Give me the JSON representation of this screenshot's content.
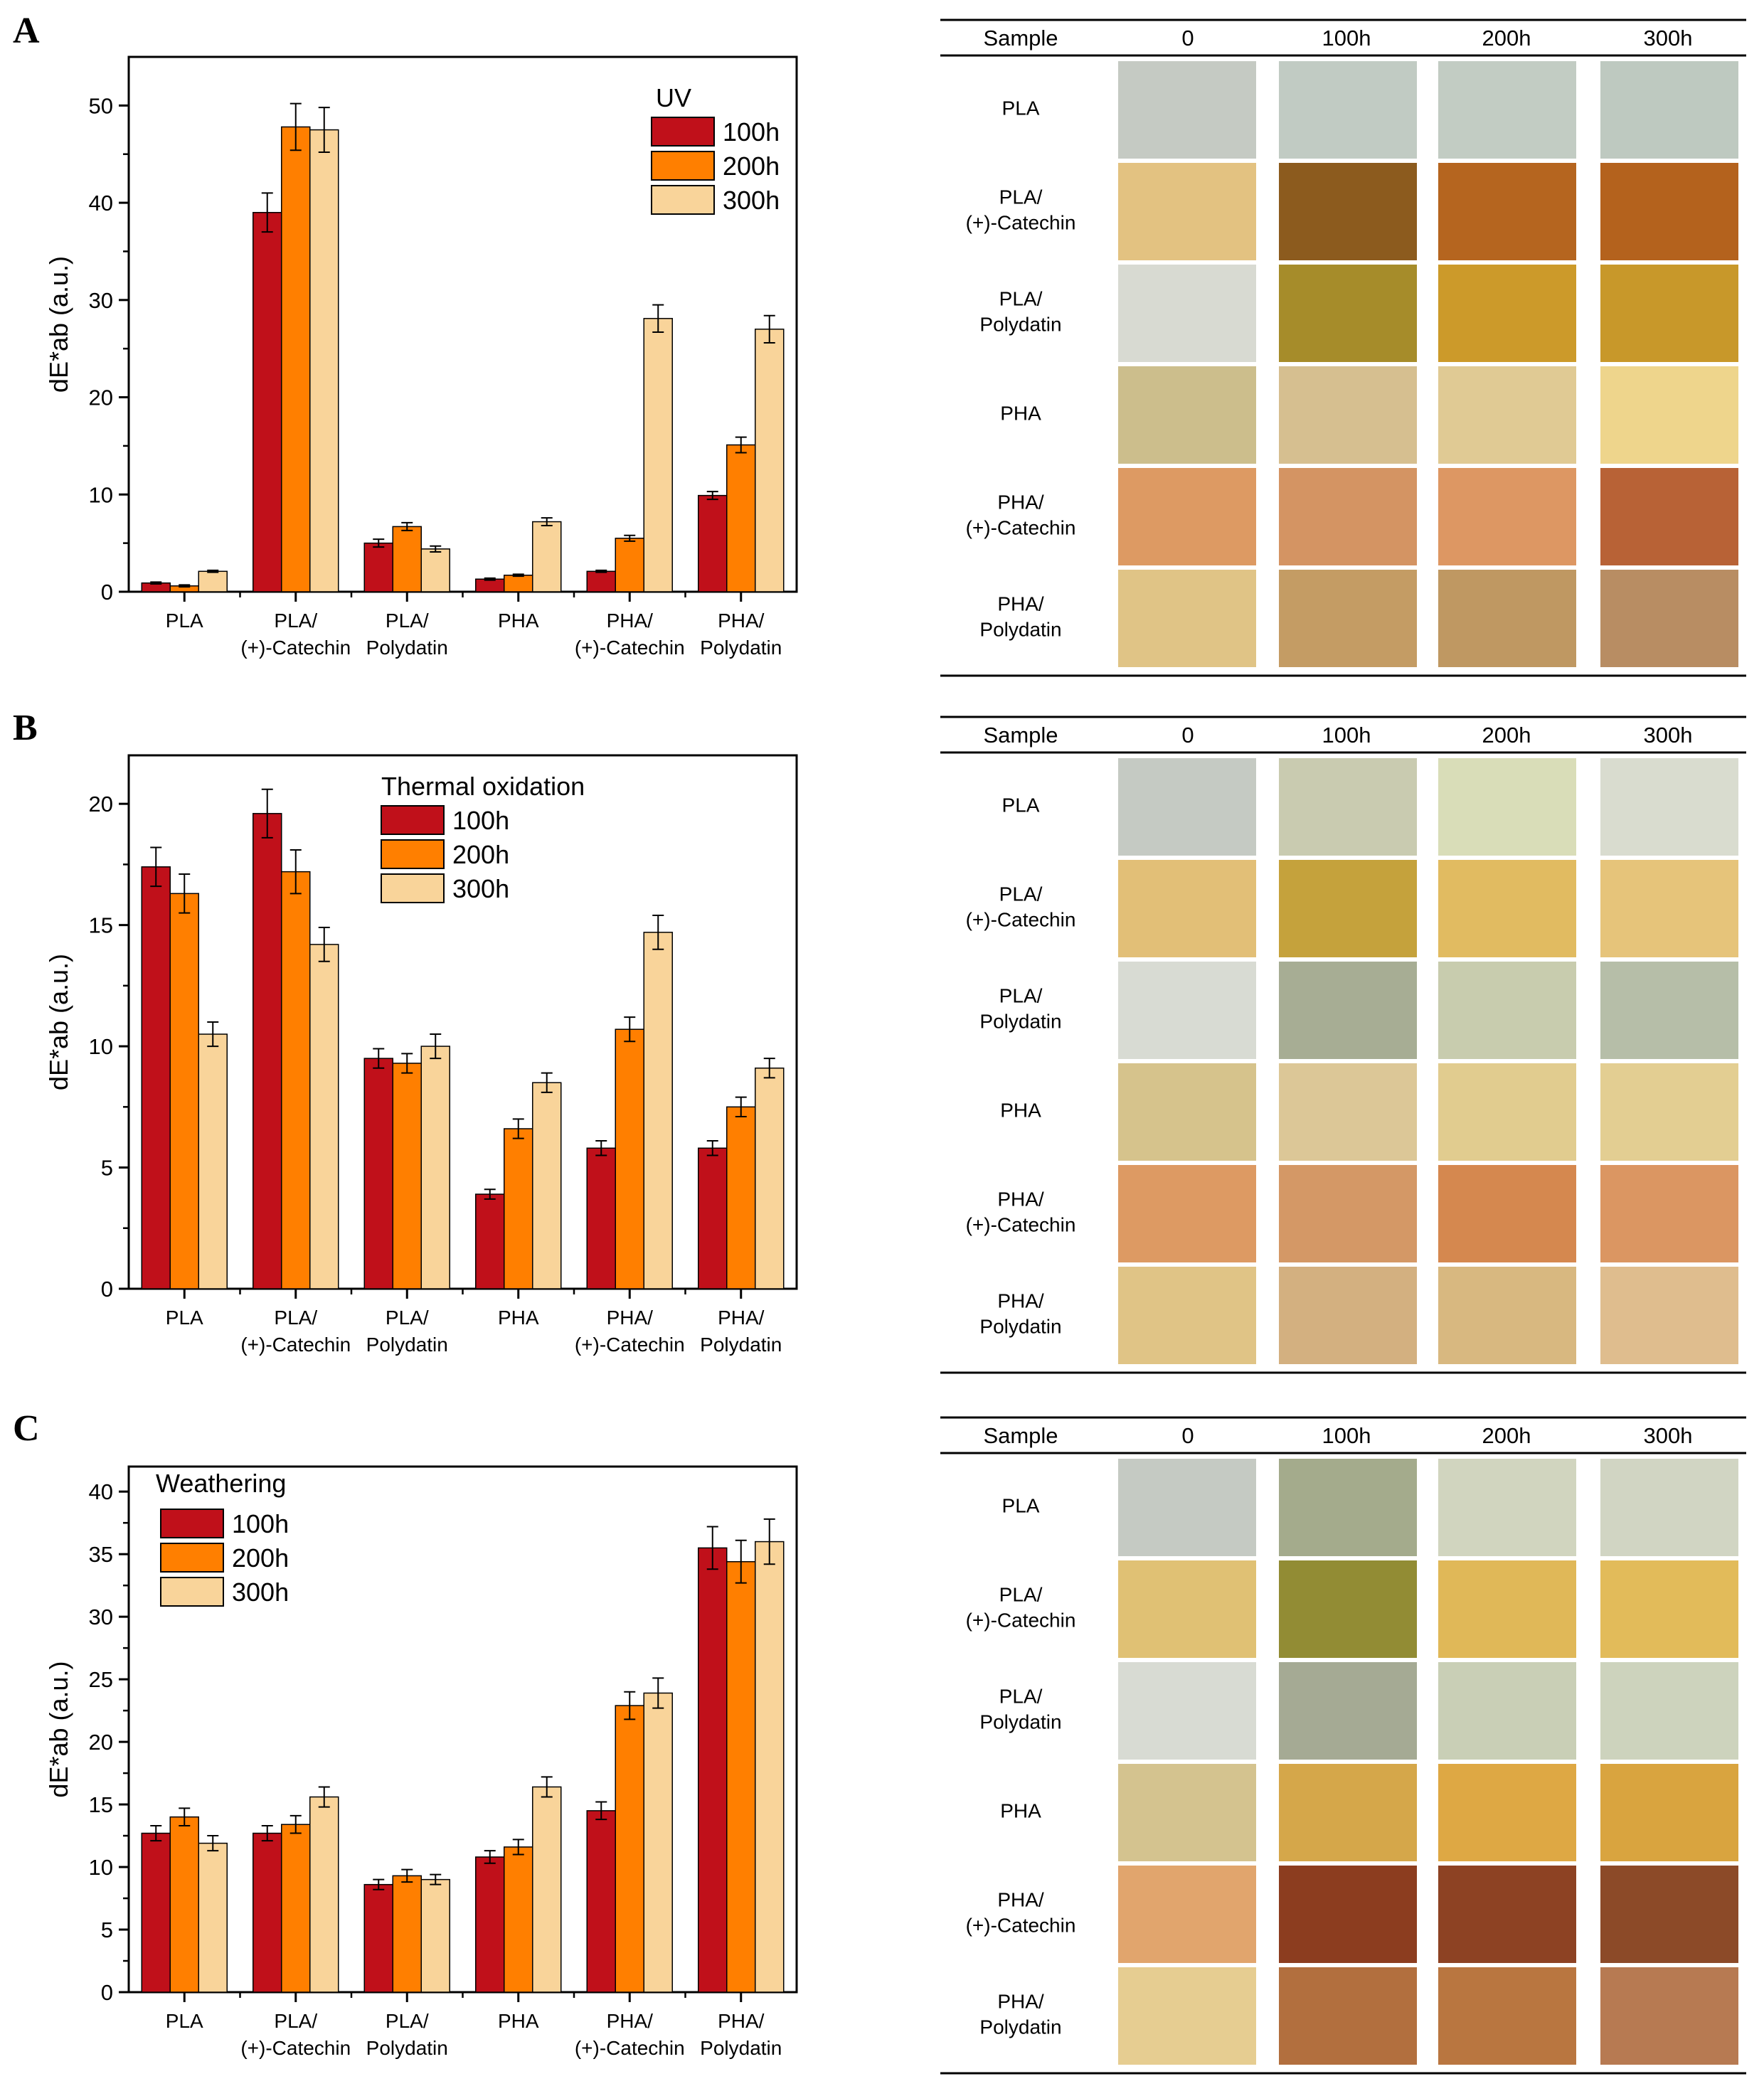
{
  "figure": {
    "group_labels": [
      "PLA",
      "PLA/\n(+)-Catechin",
      "PLA/\nPolydatin",
      "PHA",
      "PHA/\n(+)-Catechin",
      "PHA/\nPolydatin"
    ],
    "series_colors": {
      "100h": "#c0101a",
      "200h": "#ff7f00",
      "300h": "#f9d49a"
    }
  },
  "chart_data": [
    {
      "type": "bar",
      "panel": "A",
      "title": "",
      "legend_title": "UV",
      "legend_position": "top-right",
      "categories": [
        "PLA",
        "PLA/\n(+)-Catechin",
        "PLA/\nPolydatin",
        "PHA",
        "PHA/\n(+)-Catechin",
        "PHA/\nPolydatin"
      ],
      "series": [
        {
          "name": "100h",
          "values": [
            0.9,
            39.0,
            5.0,
            1.3,
            2.1,
            9.9
          ],
          "errors": [
            0.1,
            2.0,
            0.4,
            0.1,
            0.1,
            0.4
          ]
        },
        {
          "name": "200h",
          "values": [
            0.6,
            47.8,
            6.7,
            1.7,
            5.5,
            15.1
          ],
          "errors": [
            0.1,
            2.4,
            0.4,
            0.1,
            0.3,
            0.8
          ]
        },
        {
          "name": "300h",
          "values": [
            2.1,
            47.5,
            4.4,
            7.2,
            28.1,
            27.0
          ],
          "errors": [
            0.1,
            2.3,
            0.3,
            0.4,
            1.4,
            1.4
          ]
        }
      ],
      "xlabel": "",
      "ylabel": "dE*ab (a.u.)",
      "ylim": [
        0,
        55
      ],
      "yticks": [
        0,
        10,
        20,
        30,
        40,
        50
      ]
    },
    {
      "type": "bar",
      "panel": "B",
      "title": "",
      "legend_title": "Thermal oxidation",
      "legend_position": "top-center",
      "categories": [
        "PLA",
        "PLA/\n(+)-Catechin",
        "PLA/\nPolydatin",
        "PHA",
        "PHA/\n(+)-Catechin",
        "PHA/\nPolydatin"
      ],
      "series": [
        {
          "name": "100h",
          "values": [
            17.4,
            19.6,
            9.5,
            3.9,
            5.8,
            5.8
          ],
          "errors": [
            0.8,
            1.0,
            0.4,
            0.2,
            0.3,
            0.3
          ]
        },
        {
          "name": "200h",
          "values": [
            16.3,
            17.2,
            9.3,
            6.6,
            10.7,
            7.5
          ],
          "errors": [
            0.8,
            0.9,
            0.4,
            0.4,
            0.5,
            0.4
          ]
        },
        {
          "name": "300h",
          "values": [
            10.5,
            14.2,
            10.0,
            8.5,
            14.7,
            9.1
          ],
          "errors": [
            0.5,
            0.7,
            0.5,
            0.4,
            0.7,
            0.4
          ]
        }
      ],
      "xlabel": "",
      "ylabel": "dE*ab (a.u.)",
      "ylim": [
        0,
        22
      ],
      "yticks": [
        0,
        5,
        10,
        15,
        20
      ]
    },
    {
      "type": "bar",
      "panel": "C",
      "title": "",
      "legend_title": "Weathering",
      "legend_position": "top-left",
      "categories": [
        "PLA",
        "PLA/\n(+)-Catechin",
        "PLA/\nPolydatin",
        "PHA",
        "PHA/\n(+)-Catechin",
        "PHA/\nPolydatin"
      ],
      "series": [
        {
          "name": "100h",
          "values": [
            12.7,
            12.7,
            8.6,
            10.8,
            14.5,
            35.5
          ],
          "errors": [
            0.6,
            0.6,
            0.4,
            0.5,
            0.7,
            1.7
          ]
        },
        {
          "name": "200h",
          "values": [
            14.0,
            13.4,
            9.3,
            11.6,
            22.9,
            34.4
          ],
          "errors": [
            0.7,
            0.7,
            0.5,
            0.6,
            1.1,
            1.7
          ]
        },
        {
          "name": "300h",
          "values": [
            11.9,
            15.6,
            9.0,
            16.4,
            23.9,
            36.0
          ],
          "errors": [
            0.6,
            0.8,
            0.4,
            0.8,
            1.2,
            1.8
          ]
        }
      ],
      "xlabel": "",
      "ylabel": "dE*ab (a.u.)",
      "ylim": [
        0,
        42
      ],
      "yticks": [
        0,
        5,
        10,
        15,
        20,
        25,
        30,
        35,
        40
      ]
    }
  ],
  "swatch_tables": [
    {
      "panel": "A",
      "headers": [
        "Sample",
        "0",
        "100h",
        "200h",
        "300h"
      ],
      "rows": [
        {
          "label": "PLA",
          "colors": [
            "#c5cac3",
            "#c1cbc3",
            "#c2ccc3",
            "#bec9c0"
          ]
        },
        {
          "label": "PLA/\n(+)-Catechin",
          "colors": [
            "#e3c281",
            "#8c5b1e",
            "#b5651f",
            "#b4621d"
          ]
        },
        {
          "label": "PLA/\nPolydatin",
          "colors": [
            "#d8dad2",
            "#a68c2a",
            "#cc9a2a",
            "#c8982a"
          ]
        },
        {
          "label": "PHA",
          "colors": [
            "#ccbe8c",
            "#d6bf90",
            "#e0ca94",
            "#eed58c"
          ]
        },
        {
          "label": "PHA/\n(+)-Catechin",
          "colors": [
            "#dd9a63",
            "#d49463",
            "#dd9763",
            "#b86236"
          ]
        },
        {
          "label": "PHA/\nPolydatin",
          "colors": [
            "#e0c486",
            "#c49c64",
            "#bf9862",
            "#b88d63"
          ]
        }
      ]
    },
    {
      "panel": "B",
      "headers": [
        "Sample",
        "0",
        "100h",
        "200h",
        "300h"
      ],
      "rows": [
        {
          "label": "PLA",
          "colors": [
            "#c5cac3",
            "#c9cbb0",
            "#d9ddb8",
            "#d9dccf"
          ]
        },
        {
          "label": "PLA/\n(+)-Catechin",
          "colors": [
            "#e2bf77",
            "#c5a23c",
            "#e1bb61",
            "#e6c47a"
          ]
        },
        {
          "label": "PLA/\nPolydatin",
          "colors": [
            "#d8dbd3",
            "#a7ad94",
            "#c8ccae",
            "#b6bea8"
          ]
        },
        {
          "label": "PHA",
          "colors": [
            "#d6c38c",
            "#dcc797",
            "#e1cc8f",
            "#e3ce92"
          ]
        },
        {
          "label": "PHA/\n(+)-Catechin",
          "colors": [
            "#dd9a63",
            "#d49866",
            "#d5884f",
            "#db9662"
          ]
        },
        {
          "label": "PHA/\nPolydatin",
          "colors": [
            "#e0c486",
            "#d3b080",
            "#d8b880",
            "#dfbd8e"
          ]
        }
      ]
    },
    {
      "panel": "C",
      "headers": [
        "Sample",
        "0",
        "100h",
        "200h",
        "300h"
      ],
      "rows": [
        {
          "label": "PLA",
          "colors": [
            "#c5cac3",
            "#a4ab8c",
            "#d1d5bf",
            "#d1d5c3"
          ]
        },
        {
          "label": "PLA/\n(+)-Catechin",
          "colors": [
            "#e0c174",
            "#928c34",
            "#e0b858",
            "#e2bb5a"
          ]
        },
        {
          "label": "PLA/\nPolydatin",
          "colors": [
            "#d8dbd3",
            "#a5aa94",
            "#c9cfb6",
            "#cdd3bd"
          ]
        },
        {
          "label": "PHA",
          "colors": [
            "#d4c38f",
            "#d5a74a",
            "#dea844",
            "#d9a43f"
          ]
        },
        {
          "label": "PHA/\n(+)-Catechin",
          "colors": [
            "#e1a56d",
            "#8c3d1f",
            "#8d4223",
            "#8c4a28"
          ]
        },
        {
          "label": "PHA/\nPolydatin",
          "colors": [
            "#e6cd91",
            "#b26f3e",
            "#b97640",
            "#b77a52"
          ]
        }
      ]
    }
  ]
}
